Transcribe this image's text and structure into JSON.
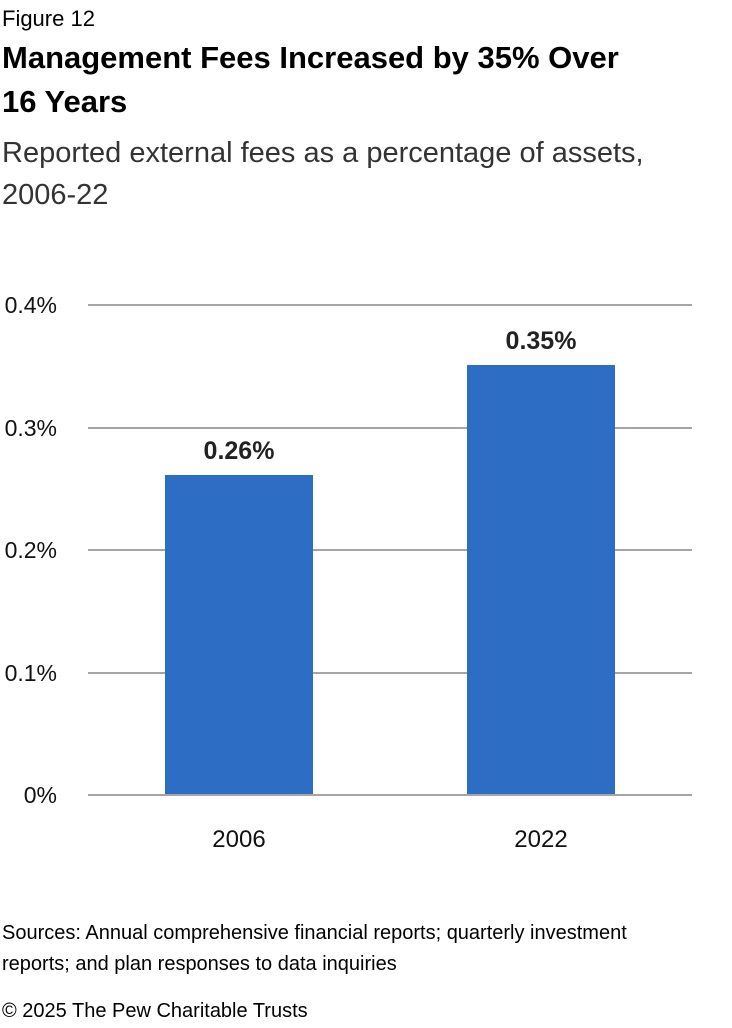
{
  "figure_label": "Figure 12",
  "title_lines": [
    "Management Fees Increased by 35% Over",
    "16 Years"
  ],
  "subtitle_lines": [
    "Reported external fees as a percentage of assets,",
    "2006-22"
  ],
  "source_lines": [
    "Sources: Annual comprehensive financial reports; quarterly investment",
    "reports; and plan responses to data inquiries"
  ],
  "copyright": "© 2025 The Pew Charitable Trusts",
  "chart_data": {
    "type": "bar",
    "title": "Management Fees Increased by 35% Over 16 Years",
    "subtitle": "Reported external fees as a percentage of assets, 2006-22",
    "categories": [
      "2006",
      "2022"
    ],
    "values": [
      0.26,
      0.35
    ],
    "value_labels": [
      "0.26%",
      "0.35%"
    ],
    "xlabel": "",
    "ylabel": "",
    "ylim": [
      0,
      0.4
    ],
    "yticks": [
      0,
      0.1,
      0.2,
      0.3,
      0.4
    ],
    "ytick_labels": [
      "0%",
      "0.1%",
      "0.2%",
      "0.3%",
      "0.4%"
    ],
    "grid": true,
    "legend": "none",
    "bar_color": "#2D6DC3",
    "gridline_color": "#A5A5A5"
  }
}
